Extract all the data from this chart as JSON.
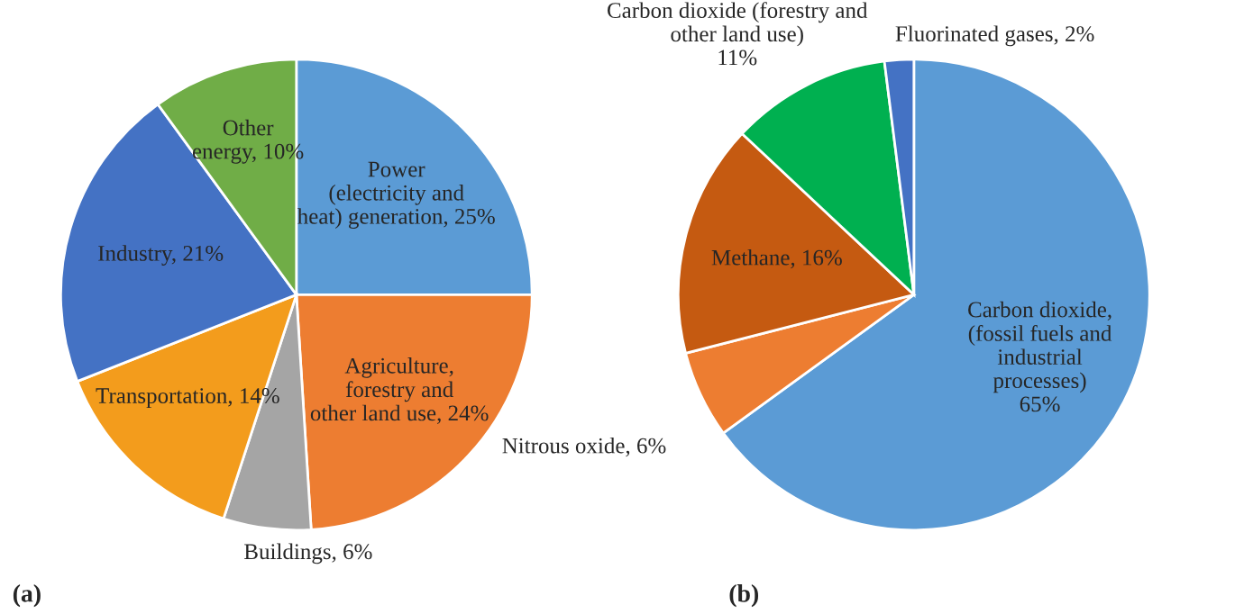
{
  "chart_data": [
    {
      "type": "pie",
      "categories": [
        "Power\n(electricity and\nheat) generation",
        "Agriculture,\nforestry and\nother land use",
        "Buildings",
        "Transportation",
        "Industry",
        "Other\nenergy"
      ],
      "values": [
        25,
        24,
        6,
        14,
        21,
        10
      ],
      "value_labels": [
        "25%",
        "24%",
        "6%",
        "14%",
        "21%",
        "10%"
      ],
      "colors": [
        "#5b9bd5",
        "#ed7d31",
        "#a5a5a5",
        "#f39c1c",
        "#4472c4",
        "#70ad47"
      ],
      "annotations": [
        "(a)"
      ]
    },
    {
      "type": "pie",
      "categories": [
        "Carbon dioxide,\n(fossil fuels and\nindustrial\nprocesses)",
        "Nitrous oxide",
        "Methane",
        "Carbon dioxide (forestry and\nother land use)",
        "Fluorinated gases"
      ],
      "values": [
        65,
        6,
        16,
        11,
        2
      ],
      "value_labels": [
        "65%",
        "6%",
        "16%",
        "11%",
        "2%"
      ],
      "colors": [
        "#5b9bd5",
        "#ed7d31",
        "#c55a11",
        "#00b050",
        "#4472c4"
      ],
      "annotations": [
        "(b)"
      ]
    }
  ]
}
